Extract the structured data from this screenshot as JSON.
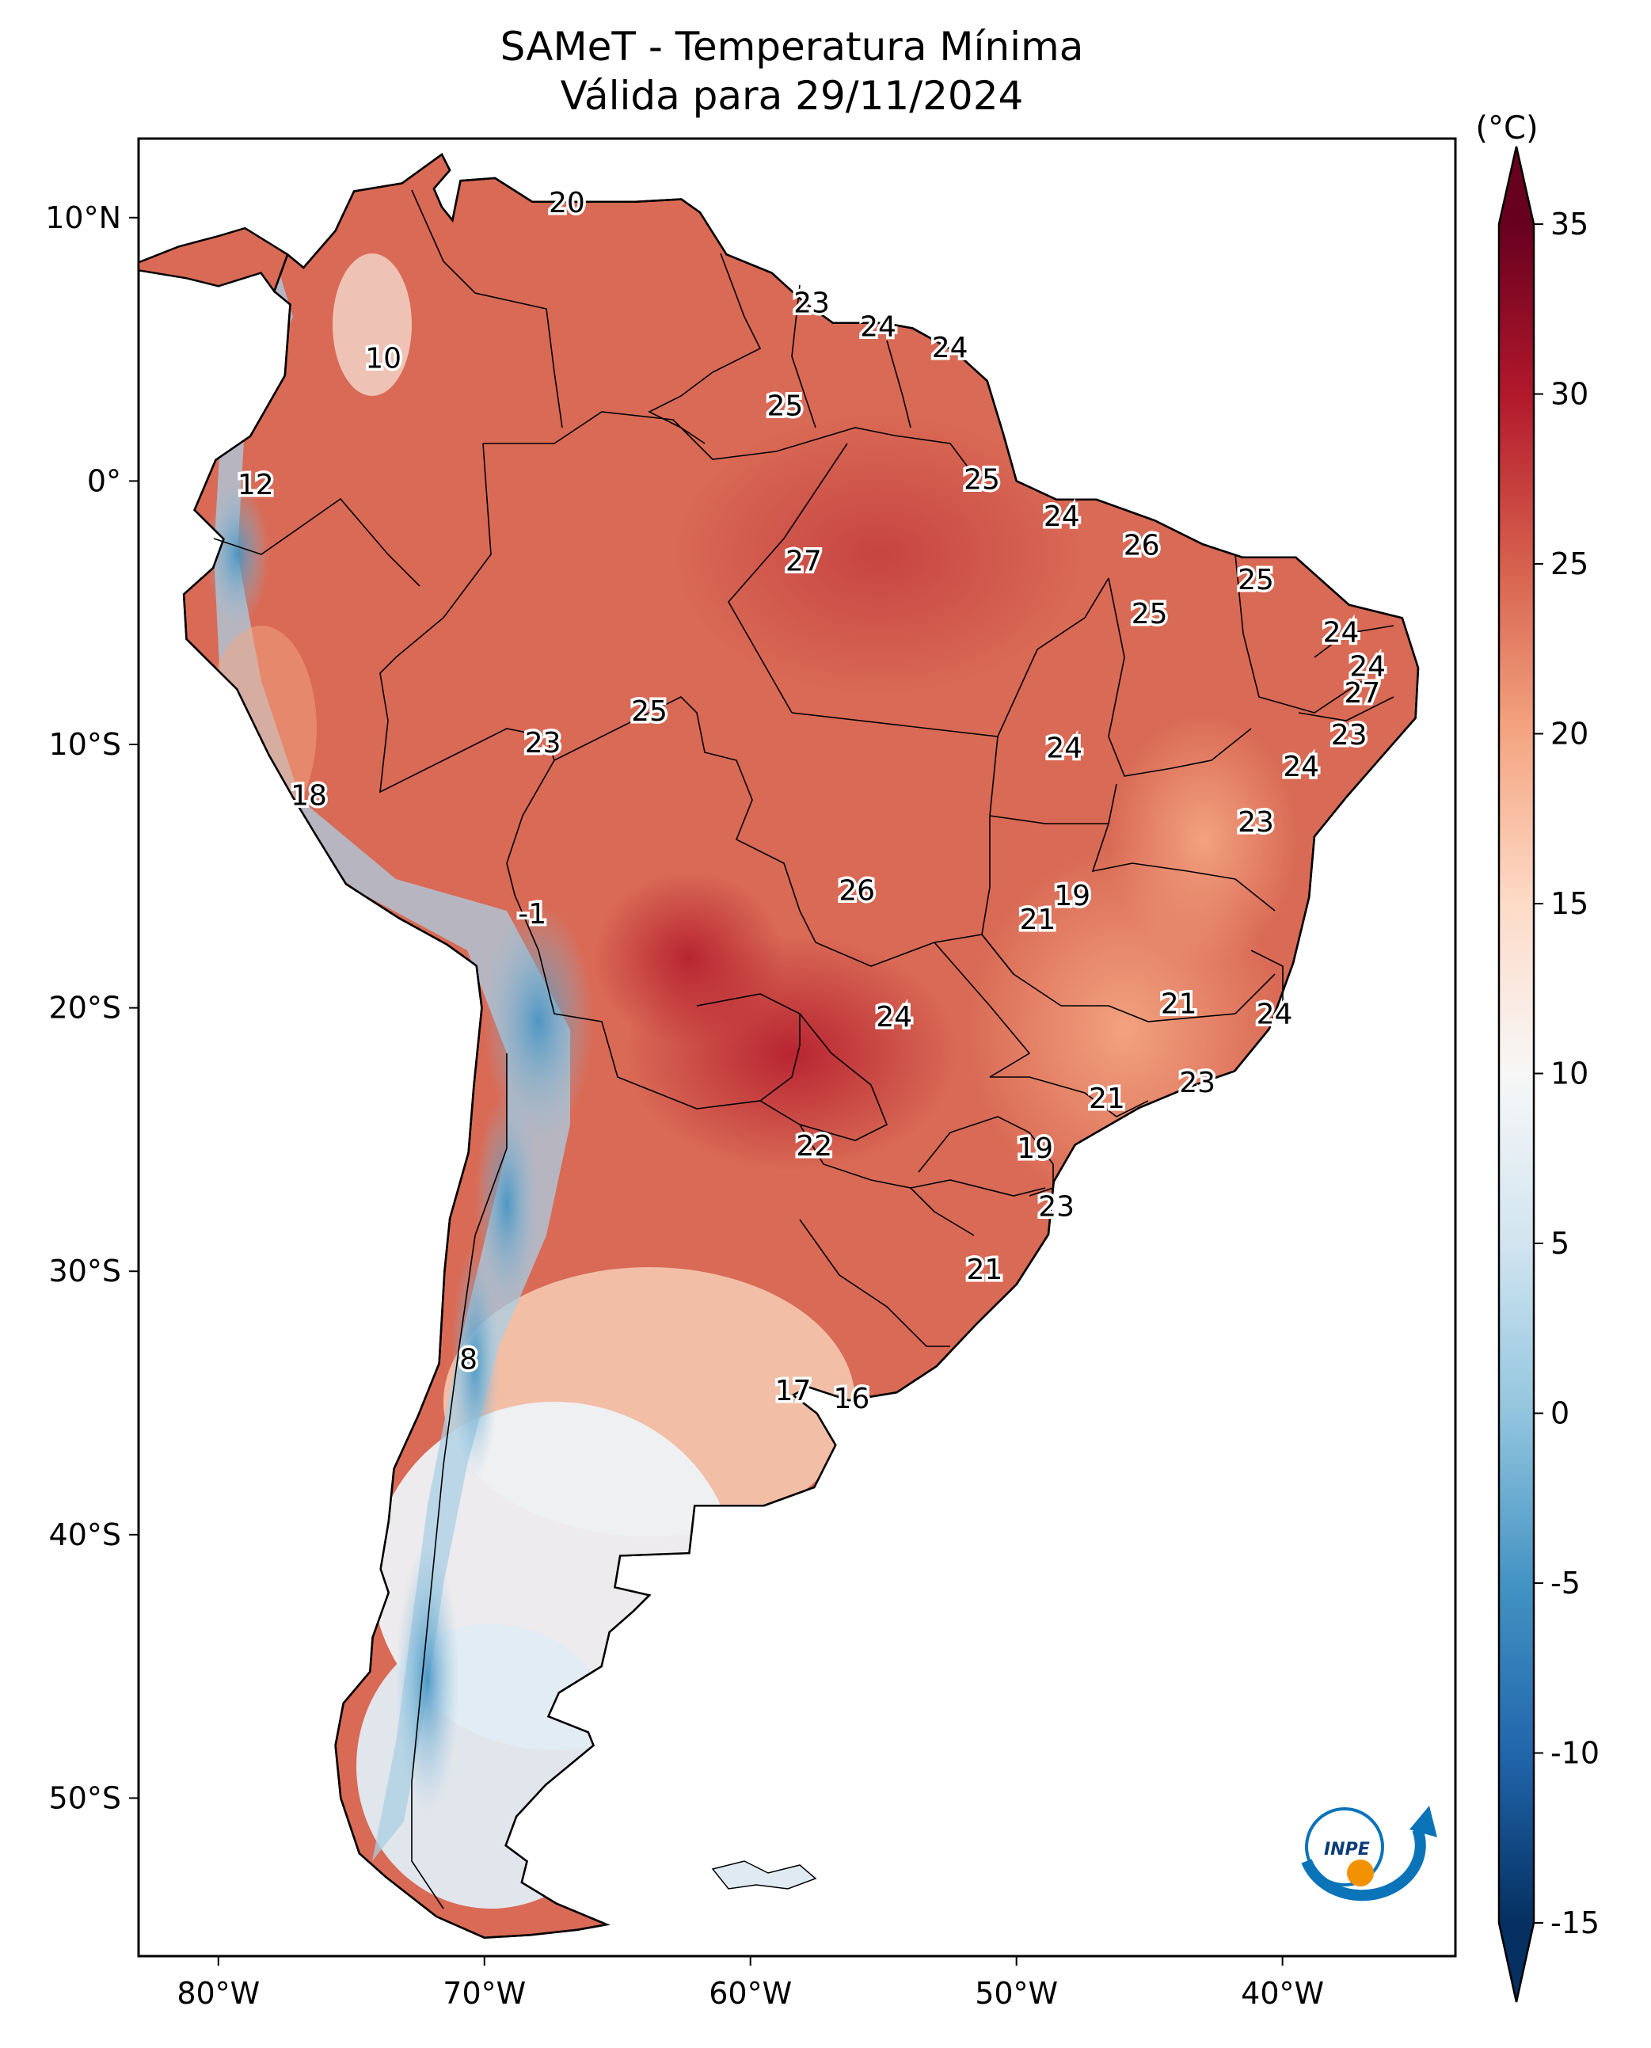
{
  "title": {
    "line1": "SAMeT - Temperatura Mínima",
    "line2": "Válida para 29/11/2024"
  },
  "map": {
    "region": "South America",
    "lon_range": [
      -83,
      -33.5
    ],
    "lat_range": [
      -56,
      13
    ],
    "lon_ticks": [
      "80°W",
      "70°W",
      "60°W",
      "50°W",
      "40°W"
    ],
    "lat_ticks": [
      "10°N",
      "0°",
      "10°S",
      "20°S",
      "30°S",
      "40°S",
      "50°S"
    ],
    "temperature_labels": [
      {
        "lon": -66.9,
        "lat": 10.5,
        "value": "20"
      },
      {
        "lon": -57.7,
        "lat": 6.7,
        "value": "23"
      },
      {
        "lon": -55.2,
        "lat": 5.8,
        "value": "24"
      },
      {
        "lon": -52.5,
        "lat": 5.0,
        "value": "24"
      },
      {
        "lon": -73.8,
        "lat": 4.6,
        "value": "10"
      },
      {
        "lon": -58.7,
        "lat": 2.8,
        "value": "25"
      },
      {
        "lon": -78.6,
        "lat": -0.2,
        "value": "12"
      },
      {
        "lon": -51.3,
        "lat": 0.0,
        "value": "25"
      },
      {
        "lon": -48.3,
        "lat": -1.4,
        "value": "24"
      },
      {
        "lon": -58.0,
        "lat": -3.1,
        "value": "27"
      },
      {
        "lon": -45.3,
        "lat": -2.5,
        "value": "26"
      },
      {
        "lon": -41.0,
        "lat": -3.8,
        "value": "25"
      },
      {
        "lon": -45.0,
        "lat": -5.1,
        "value": "25"
      },
      {
        "lon": -37.8,
        "lat": -5.8,
        "value": "24"
      },
      {
        "lon": -36.8,
        "lat": -7.1,
        "value": "24"
      },
      {
        "lon": -37.0,
        "lat": -8.1,
        "value": "27"
      },
      {
        "lon": -63.8,
        "lat": -8.8,
        "value": "25"
      },
      {
        "lon": -37.5,
        "lat": -9.7,
        "value": "23"
      },
      {
        "lon": -67.8,
        "lat": -10.0,
        "value": "23"
      },
      {
        "lon": -48.2,
        "lat": -10.2,
        "value": "24"
      },
      {
        "lon": -39.3,
        "lat": -10.9,
        "value": "24"
      },
      {
        "lon": -76.6,
        "lat": -12.0,
        "value": "18"
      },
      {
        "lon": -41.0,
        "lat": -13.0,
        "value": "23"
      },
      {
        "lon": -56.0,
        "lat": -15.6,
        "value": "26"
      },
      {
        "lon": -47.9,
        "lat": -15.8,
        "value": "19"
      },
      {
        "lon": -49.2,
        "lat": -16.7,
        "value": "21"
      },
      {
        "lon": -68.2,
        "lat": -16.5,
        "value": "-1"
      },
      {
        "lon": -43.9,
        "lat": -19.9,
        "value": "21"
      },
      {
        "lon": -40.3,
        "lat": -20.3,
        "value": "24"
      },
      {
        "lon": -54.6,
        "lat": -20.4,
        "value": "24"
      },
      {
        "lon": -43.2,
        "lat": -22.9,
        "value": "23"
      },
      {
        "lon": -46.6,
        "lat": -23.5,
        "value": "21"
      },
      {
        "lon": -57.6,
        "lat": -25.3,
        "value": "22"
      },
      {
        "lon": -49.3,
        "lat": -25.4,
        "value": "19"
      },
      {
        "lon": -48.5,
        "lat": -27.6,
        "value": "23"
      },
      {
        "lon": -51.2,
        "lat": -30.0,
        "value": "21"
      },
      {
        "lon": -70.6,
        "lat": -33.4,
        "value": "8"
      },
      {
        "lon": -58.4,
        "lat": -34.6,
        "value": "17"
      },
      {
        "lon": -56.2,
        "lat": -34.9,
        "value": "16"
      }
    ]
  },
  "colorbar": {
    "unit": "(°C)",
    "min": -15,
    "max": 35,
    "ticks": [
      "35",
      "30",
      "25",
      "20",
      "15",
      "10",
      "5",
      "0",
      "-5",
      "-10",
      "-15"
    ],
    "colors": [
      "#053061",
      "#2166ac",
      "#4393c3",
      "#92c5de",
      "#d1e5f0",
      "#f7f7f7",
      "#fddbc7",
      "#f4a582",
      "#d6604d",
      "#b2182b",
      "#67001f"
    ]
  },
  "logo": {
    "text": "INPE"
  }
}
